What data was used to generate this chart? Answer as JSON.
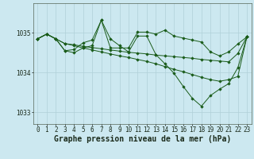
{
  "bg_color": "#cce8f0",
  "grid_color": "#b0d0d8",
  "line_color": "#1a5c1a",
  "marker_color": "#1a5c1a",
  "xlabel": "Graphe pression niveau de la mer (hPa)",
  "xlabel_fontsize": 7.0,
  "tick_fontsize": 5.5,
  "ylim": [
    1032.7,
    1035.75
  ],
  "xlim": [
    -0.5,
    23.5
  ],
  "yticks": [
    1033,
    1034,
    1035
  ],
  "xticks": [
    0,
    1,
    2,
    3,
    4,
    5,
    6,
    7,
    8,
    9,
    10,
    11,
    12,
    13,
    14,
    15,
    16,
    17,
    18,
    19,
    20,
    21,
    22,
    23
  ],
  "series": [
    [
      1034.85,
      1034.97,
      1034.85,
      1034.73,
      1034.68,
      1034.62,
      1034.57,
      1034.52,
      1034.47,
      1034.42,
      1034.38,
      1034.33,
      1034.28,
      1034.22,
      1034.15,
      1034.08,
      1034.02,
      1033.95,
      1033.88,
      1033.82,
      1033.78,
      1033.82,
      1033.9,
      1034.9
    ],
    [
      1034.85,
      1034.97,
      1034.85,
      1034.73,
      1034.7,
      1034.66,
      1034.63,
      1034.6,
      1034.57,
      1034.54,
      1034.51,
      1034.49,
      1034.47,
      1034.44,
      1034.42,
      1034.4,
      1034.38,
      1034.36,
      1034.33,
      1034.31,
      1034.29,
      1034.27,
      1034.48,
      1034.9
    ],
    [
      1034.85,
      1034.97,
      1034.85,
      1034.55,
      1034.58,
      1034.75,
      1034.82,
      1035.32,
      1034.85,
      1034.68,
      1034.52,
      1034.92,
      1034.92,
      1034.45,
      1034.22,
      1033.98,
      1033.65,
      1033.35,
      1033.15,
      1033.42,
      1033.58,
      1033.72,
      1034.12,
      1034.9
    ],
    [
      1034.85,
      1034.97,
      1034.85,
      1034.55,
      1034.5,
      1034.62,
      1034.68,
      1035.32,
      1034.62,
      1034.62,
      1034.62,
      1035.02,
      1035.02,
      1034.97,
      1035.07,
      1034.92,
      1034.87,
      1034.82,
      1034.77,
      1034.52,
      1034.42,
      1034.52,
      1034.72,
      1034.9
    ]
  ]
}
